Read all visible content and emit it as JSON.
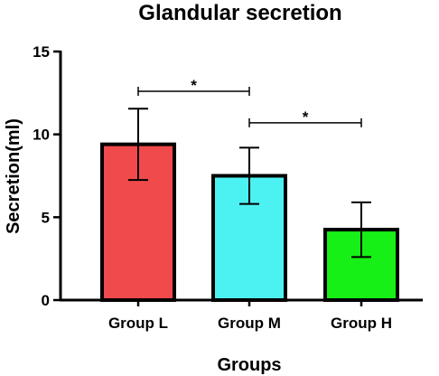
{
  "chart_data": {
    "type": "bar",
    "title": "Glandular secretion",
    "xlabel": "Groups",
    "ylabel": "Secretion(ml)",
    "ylim": [
      0,
      15
    ],
    "yticks": [
      0,
      5,
      10,
      15
    ],
    "grid": false,
    "categories": [
      "Group L",
      "Group M",
      "Group H"
    ],
    "values": [
      9.4,
      7.5,
      4.25
    ],
    "error": [
      2.15,
      1.7,
      1.65
    ],
    "colors": [
      "#f04a4c",
      "#4cf2f2",
      "#16f016"
    ],
    "significance": [
      {
        "from": "Group L",
        "to": "Group M",
        "label": "*",
        "y": 12.6
      },
      {
        "from": "Group M",
        "to": "Group H",
        "label": "*",
        "y": 10.7
      }
    ]
  }
}
